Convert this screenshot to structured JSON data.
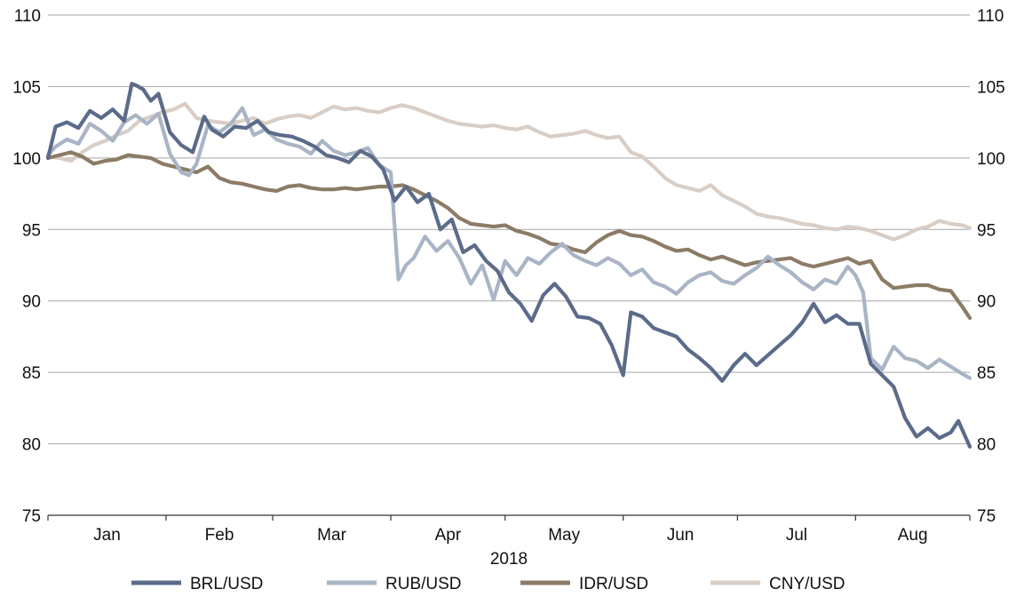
{
  "chart_data": {
    "type": "line",
    "title": "",
    "xlabel": "2018",
    "ylabel": "",
    "ylim": [
      75,
      110
    ],
    "yticks": [
      75,
      80,
      85,
      90,
      95,
      100,
      105,
      110
    ],
    "grid": true,
    "legend_position": "bottom",
    "months": [
      "Jan",
      "Feb",
      "Mar",
      "Apr",
      "May",
      "Jun",
      "Jul",
      "Aug"
    ],
    "x_start": "2018-01-01",
    "x_end": "2018-08-31",
    "series": [
      {
        "name": "BRL/USD",
        "color": "#5b6b8a",
        "x": [
          "2018-01-01",
          "2018-01-03",
          "2018-01-06",
          "2018-01-09",
          "2018-01-12",
          "2018-01-15",
          "2018-01-18",
          "2018-01-21",
          "2018-01-23",
          "2018-01-24",
          "2018-01-26",
          "2018-01-28",
          "2018-01-30",
          "2018-02-02",
          "2018-02-05",
          "2018-02-08",
          "2018-02-11",
          "2018-02-13",
          "2018-02-16",
          "2018-02-19",
          "2018-02-22",
          "2018-02-25",
          "2018-02-28",
          "2018-03-03",
          "2018-03-06",
          "2018-03-09",
          "2018-03-12",
          "2018-03-15",
          "2018-03-18",
          "2018-03-21",
          "2018-03-24",
          "2018-03-27",
          "2018-03-30",
          "2018-04-02",
          "2018-04-05",
          "2018-04-08",
          "2018-04-11",
          "2018-04-14",
          "2018-04-17",
          "2018-04-20",
          "2018-04-23",
          "2018-04-26",
          "2018-04-29",
          "2018-05-02",
          "2018-05-05",
          "2018-05-08",
          "2018-05-11",
          "2018-05-14",
          "2018-05-17",
          "2018-05-20",
          "2018-05-23",
          "2018-05-26",
          "2018-05-29",
          "2018-06-01",
          "2018-06-03",
          "2018-06-06",
          "2018-06-09",
          "2018-06-12",
          "2018-06-15",
          "2018-06-18",
          "2018-06-21",
          "2018-06-24",
          "2018-06-27",
          "2018-06-30",
          "2018-07-03",
          "2018-07-06",
          "2018-07-09",
          "2018-07-12",
          "2018-07-15",
          "2018-07-18",
          "2018-07-21",
          "2018-07-24",
          "2018-07-27",
          "2018-07-30",
          "2018-08-02",
          "2018-08-05",
          "2018-08-08",
          "2018-08-11",
          "2018-08-14",
          "2018-08-17",
          "2018-08-20",
          "2018-08-23",
          "2018-08-26",
          "2018-08-28",
          "2018-08-31"
        ],
        "values": [
          100.0,
          102.2,
          102.5,
          102.1,
          103.3,
          102.8,
          103.4,
          102.6,
          105.2,
          105.1,
          104.8,
          104.0,
          104.5,
          101.8,
          100.9,
          100.4,
          102.9,
          102.0,
          101.5,
          102.2,
          102.1,
          102.6,
          101.8,
          101.6,
          101.5,
          101.2,
          100.8,
          100.2,
          100.0,
          99.7,
          100.5,
          100.1,
          99.2,
          97.0,
          98.0,
          96.9,
          97.5,
          95.0,
          95.7,
          93.4,
          93.9,
          92.8,
          92.1,
          90.6,
          89.8,
          88.6,
          90.4,
          91.2,
          90.3,
          88.9,
          88.8,
          88.4,
          86.9,
          84.8,
          89.2,
          88.9,
          88.1,
          87.8,
          87.5,
          86.6,
          86.0,
          85.3,
          84.4,
          85.5,
          86.3,
          85.5,
          86.2,
          86.9,
          87.6,
          88.5,
          89.8,
          88.5,
          89.0,
          88.4,
          88.4,
          85.6,
          84.8,
          84.0,
          81.8,
          80.5,
          81.1,
          80.4,
          80.8,
          81.6,
          79.8
        ]
      },
      {
        "name": "RUB/USD",
        "color": "#a9b4c5",
        "x": [
          "2018-01-01",
          "2018-01-03",
          "2018-01-06",
          "2018-01-09",
          "2018-01-12",
          "2018-01-15",
          "2018-01-18",
          "2018-01-21",
          "2018-01-24",
          "2018-01-27",
          "2018-01-30",
          "2018-02-02",
          "2018-02-05",
          "2018-02-07",
          "2018-02-09",
          "2018-02-12",
          "2018-02-15",
          "2018-02-18",
          "2018-02-21",
          "2018-02-24",
          "2018-02-27",
          "2018-03-02",
          "2018-03-05",
          "2018-03-08",
          "2018-03-11",
          "2018-03-14",
          "2018-03-17",
          "2018-03-20",
          "2018-03-23",
          "2018-03-26",
          "2018-03-29",
          "2018-04-01",
          "2018-04-03",
          "2018-04-05",
          "2018-04-07",
          "2018-04-10",
          "2018-04-13",
          "2018-04-16",
          "2018-04-19",
          "2018-04-22",
          "2018-04-25",
          "2018-04-28",
          "2018-05-01",
          "2018-05-04",
          "2018-05-07",
          "2018-05-10",
          "2018-05-13",
          "2018-05-16",
          "2018-05-19",
          "2018-05-22",
          "2018-05-25",
          "2018-05-28",
          "2018-05-31",
          "2018-06-03",
          "2018-06-06",
          "2018-06-09",
          "2018-06-12",
          "2018-06-15",
          "2018-06-18",
          "2018-06-21",
          "2018-06-24",
          "2018-06-27",
          "2018-06-30",
          "2018-07-03",
          "2018-07-06",
          "2018-07-09",
          "2018-07-12",
          "2018-07-15",
          "2018-07-18",
          "2018-07-21",
          "2018-07-24",
          "2018-07-27",
          "2018-07-30",
          "2018-08-01",
          "2018-08-03",
          "2018-08-05",
          "2018-08-08",
          "2018-08-11",
          "2018-08-14",
          "2018-08-17",
          "2018-08-20",
          "2018-08-23",
          "2018-08-26",
          "2018-08-29",
          "2018-08-31"
        ],
        "values": [
          100.2,
          100.8,
          101.3,
          101.0,
          102.4,
          101.9,
          101.2,
          102.5,
          103.0,
          102.4,
          103.1,
          100.3,
          99.0,
          98.8,
          99.6,
          102.3,
          101.8,
          102.4,
          103.5,
          101.6,
          102.0,
          101.3,
          101.0,
          100.8,
          100.3,
          101.2,
          100.5,
          100.2,
          100.4,
          100.7,
          99.5,
          99.0,
          91.5,
          92.5,
          93.0,
          94.5,
          93.5,
          94.2,
          93.0,
          91.2,
          92.5,
          90.1,
          92.8,
          91.8,
          93.0,
          92.6,
          93.4,
          94.0,
          93.2,
          92.8,
          92.5,
          93.0,
          92.6,
          91.8,
          92.2,
          91.3,
          91.0,
          90.5,
          91.3,
          91.8,
          92.0,
          91.4,
          91.2,
          91.8,
          92.3,
          93.1,
          92.5,
          92.0,
          91.3,
          90.8,
          91.5,
          91.2,
          92.4,
          91.8,
          90.6,
          86.0,
          85.2,
          86.8,
          86.0,
          85.8,
          85.3,
          85.9,
          85.4,
          84.9,
          84.6
        ]
      },
      {
        "name": "IDR/USD",
        "color": "#8c7b65",
        "x": [
          "2018-01-01",
          "2018-01-04",
          "2018-01-07",
          "2018-01-10",
          "2018-01-13",
          "2018-01-16",
          "2018-01-19",
          "2018-01-22",
          "2018-01-25",
          "2018-01-28",
          "2018-01-31",
          "2018-02-03",
          "2018-02-06",
          "2018-02-09",
          "2018-02-12",
          "2018-02-15",
          "2018-02-18",
          "2018-02-21",
          "2018-02-24",
          "2018-02-27",
          "2018-03-02",
          "2018-03-05",
          "2018-03-08",
          "2018-03-11",
          "2018-03-14",
          "2018-03-17",
          "2018-03-20",
          "2018-03-23",
          "2018-03-26",
          "2018-03-29",
          "2018-04-01",
          "2018-04-04",
          "2018-04-07",
          "2018-04-10",
          "2018-04-13",
          "2018-04-16",
          "2018-04-19",
          "2018-04-22",
          "2018-04-25",
          "2018-04-28",
          "2018-05-01",
          "2018-05-04",
          "2018-05-07",
          "2018-05-10",
          "2018-05-13",
          "2018-05-16",
          "2018-05-19",
          "2018-05-22",
          "2018-05-25",
          "2018-05-28",
          "2018-05-31",
          "2018-06-03",
          "2018-06-06",
          "2018-06-09",
          "2018-06-12",
          "2018-06-15",
          "2018-06-18",
          "2018-06-21",
          "2018-06-24",
          "2018-06-27",
          "2018-06-30",
          "2018-07-03",
          "2018-07-06",
          "2018-07-09",
          "2018-07-12",
          "2018-07-15",
          "2018-07-18",
          "2018-07-21",
          "2018-07-24",
          "2018-07-27",
          "2018-07-30",
          "2018-08-02",
          "2018-08-05",
          "2018-08-08",
          "2018-08-11",
          "2018-08-14",
          "2018-08-17",
          "2018-08-20",
          "2018-08-23",
          "2018-08-26",
          "2018-08-29",
          "2018-08-31"
        ],
        "values": [
          100.0,
          100.2,
          100.4,
          100.1,
          99.6,
          99.8,
          99.9,
          100.2,
          100.1,
          100.0,
          99.6,
          99.4,
          99.2,
          99.0,
          99.4,
          98.6,
          98.3,
          98.2,
          98.0,
          97.8,
          97.7,
          98.0,
          98.1,
          97.9,
          97.8,
          97.8,
          97.9,
          97.8,
          97.9,
          98.0,
          98.0,
          98.1,
          97.8,
          97.4,
          97.0,
          96.5,
          95.8,
          95.4,
          95.3,
          95.2,
          95.3,
          94.9,
          94.7,
          94.4,
          94.0,
          93.9,
          93.6,
          93.4,
          94.1,
          94.6,
          94.9,
          94.6,
          94.5,
          94.2,
          93.8,
          93.5,
          93.6,
          93.2,
          92.9,
          93.1,
          92.8,
          92.5,
          92.7,
          92.8,
          92.9,
          93.0,
          92.6,
          92.4,
          92.6,
          92.8,
          93.0,
          92.6,
          92.8,
          91.5,
          90.9,
          91.0,
          91.1,
          91.1,
          90.8,
          90.7,
          89.6,
          88.8
        ]
      },
      {
        "name": "CNY/USD",
        "color": "#d9cec6",
        "x": [
          "2018-01-01",
          "2018-01-04",
          "2018-01-07",
          "2018-01-10",
          "2018-01-13",
          "2018-01-16",
          "2018-01-19",
          "2018-01-22",
          "2018-01-25",
          "2018-01-28",
          "2018-01-31",
          "2018-02-03",
          "2018-02-06",
          "2018-02-09",
          "2018-02-12",
          "2018-02-15",
          "2018-02-18",
          "2018-02-21",
          "2018-02-24",
          "2018-02-27",
          "2018-03-02",
          "2018-03-05",
          "2018-03-08",
          "2018-03-11",
          "2018-03-14",
          "2018-03-17",
          "2018-03-20",
          "2018-03-23",
          "2018-03-26",
          "2018-03-29",
          "2018-04-01",
          "2018-04-04",
          "2018-04-07",
          "2018-04-10",
          "2018-04-13",
          "2018-04-16",
          "2018-04-19",
          "2018-04-22",
          "2018-04-25",
          "2018-04-28",
          "2018-05-01",
          "2018-05-04",
          "2018-05-07",
          "2018-05-10",
          "2018-05-13",
          "2018-05-16",
          "2018-05-19",
          "2018-05-22",
          "2018-05-25",
          "2018-05-28",
          "2018-05-31",
          "2018-06-03",
          "2018-06-06",
          "2018-06-09",
          "2018-06-12",
          "2018-06-15",
          "2018-06-18",
          "2018-06-21",
          "2018-06-24",
          "2018-06-27",
          "2018-06-30",
          "2018-07-03",
          "2018-07-06",
          "2018-07-09",
          "2018-07-12",
          "2018-07-15",
          "2018-07-18",
          "2018-07-21",
          "2018-07-24",
          "2018-07-27",
          "2018-07-30",
          "2018-08-02",
          "2018-08-05",
          "2018-08-08",
          "2018-08-11",
          "2018-08-14",
          "2018-08-17",
          "2018-08-20",
          "2018-08-23",
          "2018-08-26",
          "2018-08-29",
          "2018-08-31"
        ],
        "values": [
          100.1,
          100.0,
          99.8,
          100.4,
          100.9,
          101.2,
          101.6,
          101.9,
          102.6,
          102.9,
          103.2,
          103.4,
          103.8,
          102.8,
          102.6,
          102.5,
          102.4,
          102.6,
          102.8,
          102.4,
          102.7,
          102.9,
          103.0,
          102.8,
          103.2,
          103.6,
          103.4,
          103.5,
          103.3,
          103.2,
          103.5,
          103.7,
          103.5,
          103.2,
          102.9,
          102.6,
          102.4,
          102.3,
          102.2,
          102.3,
          102.1,
          102.0,
          102.2,
          101.8,
          101.5,
          101.6,
          101.7,
          101.9,
          101.6,
          101.4,
          101.5,
          100.4,
          100.1,
          99.4,
          98.6,
          98.1,
          97.9,
          97.7,
          98.1,
          97.4,
          97.0,
          96.6,
          96.1,
          95.9,
          95.8,
          95.6,
          95.4,
          95.3,
          95.1,
          95.0,
          95.2,
          95.1,
          94.9,
          94.6,
          94.3,
          94.6,
          95.0,
          95.2,
          95.6,
          95.4,
          95.3,
          95.1
        ]
      }
    ]
  }
}
